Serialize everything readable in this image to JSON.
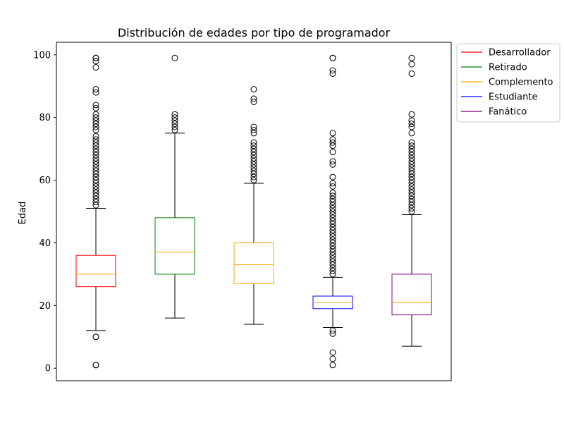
{
  "chart_data": {
    "type": "box",
    "title": "Distribución de edades por tipo de programador",
    "xlabel": "",
    "ylabel": "Edad",
    "ylim": [
      -4,
      104
    ],
    "yticks": [
      0,
      20,
      40,
      60,
      80,
      100
    ],
    "grid": false,
    "legend_position": "outside-top-right",
    "series": [
      {
        "name": "Desarrollador",
        "color": "#ff0000",
        "median_color": "#ffa500",
        "q1": 26,
        "median": 30,
        "q3": 36,
        "whisker_low": 12,
        "whisker_high": 51,
        "outliers": [
          1,
          1,
          10,
          10,
          52,
          53,
          54,
          55,
          56,
          57,
          58,
          59,
          60,
          61,
          62,
          63,
          64,
          65,
          66,
          67,
          68,
          69,
          70,
          71,
          72,
          73,
          74,
          76,
          77,
          78,
          79,
          80,
          81,
          83,
          84,
          88,
          89,
          96,
          98,
          99,
          99
        ]
      },
      {
        "name": "Retirado",
        "color": "#008000",
        "median_color": "#ffa500",
        "q1": 30,
        "median": 37,
        "q3": 48,
        "whisker_low": 16,
        "whisker_high": 75,
        "outliers": [
          76,
          77,
          78,
          79,
          80,
          81,
          99
        ]
      },
      {
        "name": "Complemento",
        "color": "#ffa500",
        "median_color": "#ffa500",
        "q1": 27,
        "median": 33,
        "q3": 40,
        "whisker_low": 14,
        "whisker_high": 59,
        "outliers": [
          60,
          61,
          62,
          63,
          64,
          65,
          66,
          67,
          68,
          69,
          70,
          71,
          72,
          75,
          76,
          77,
          85,
          86,
          89
        ]
      },
      {
        "name": "Estudiante",
        "color": "#0000ff",
        "median_color": "#ffa500",
        "q1": 19,
        "median": 21,
        "q3": 23,
        "whisker_low": 13,
        "whisker_high": 29,
        "outliers": [
          1,
          3,
          5,
          11,
          12,
          30,
          31,
          32,
          33,
          34,
          35,
          36,
          37,
          38,
          39,
          40,
          41,
          42,
          43,
          44,
          45,
          46,
          47,
          48,
          49,
          50,
          51,
          52,
          53,
          54,
          55,
          56,
          58,
          59,
          61,
          65,
          66,
          69,
          71,
          72,
          73,
          75,
          94,
          95,
          99,
          99
        ]
      },
      {
        "name": "Fanático",
        "color": "#800080",
        "median_color": "#ffa500",
        "q1": 17,
        "median": 21,
        "q3": 30,
        "whisker_low": 7,
        "whisker_high": 49,
        "outliers": [
          50,
          51,
          52,
          53,
          54,
          55,
          56,
          57,
          58,
          59,
          60,
          61,
          62,
          63,
          64,
          65,
          66,
          67,
          68,
          69,
          70,
          71,
          72,
          75,
          77,
          78,
          79,
          81,
          94,
          97,
          99
        ]
      }
    ]
  }
}
